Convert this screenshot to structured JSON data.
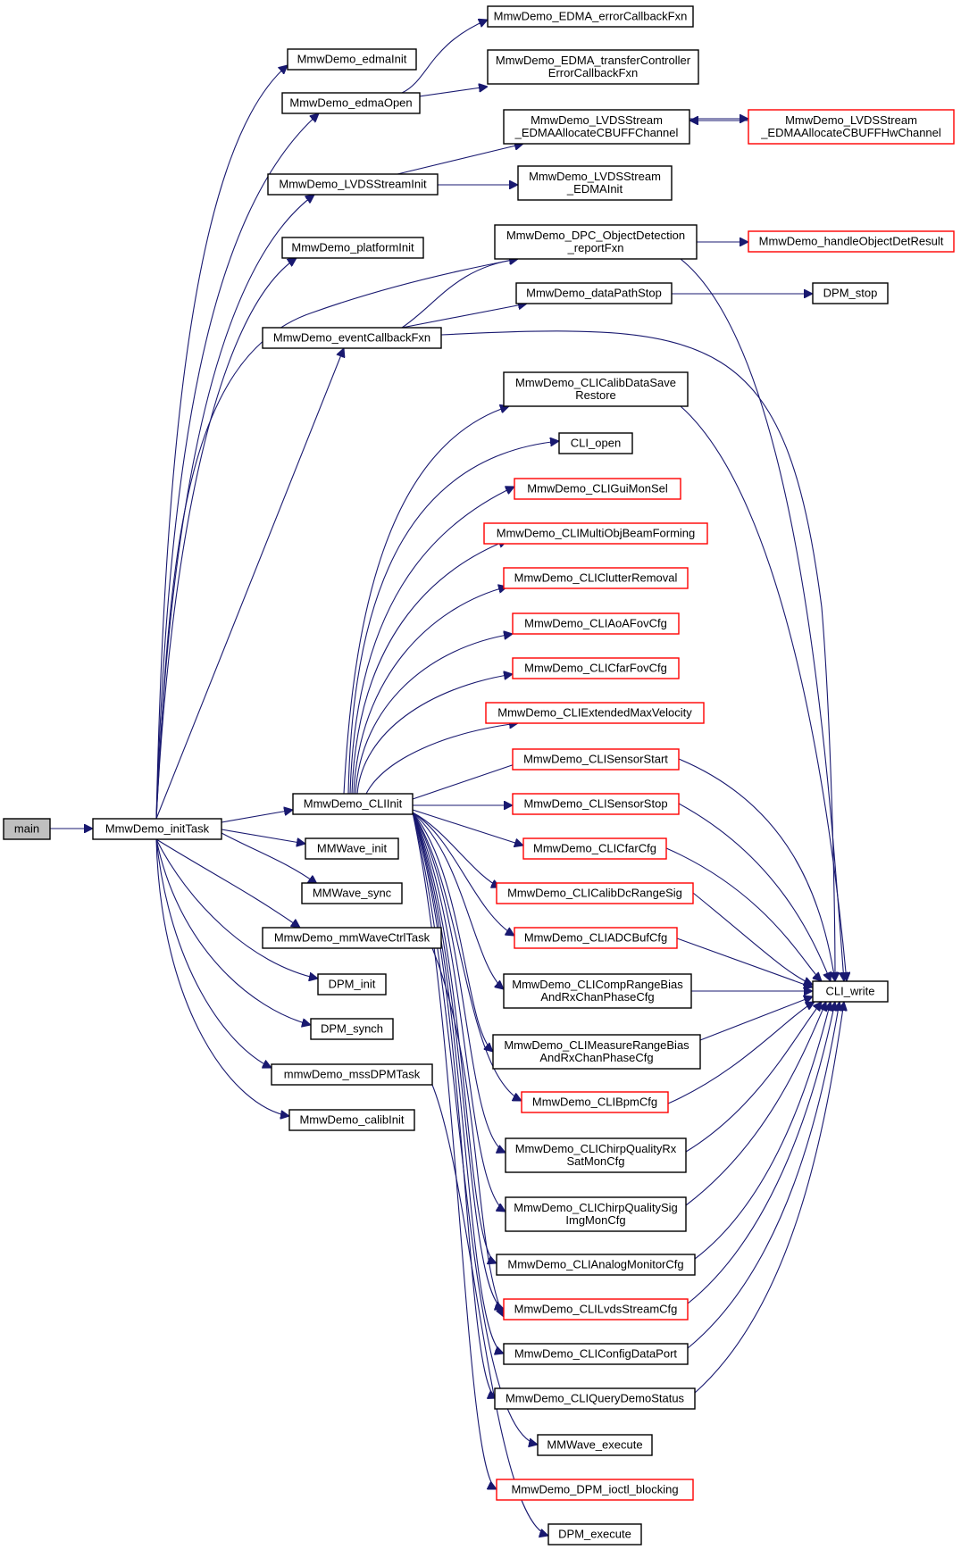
{
  "colors": {
    "edge": "#191970",
    "node_border": "#000000",
    "node_border_truncated": "#ff0000",
    "root_fill": "#bfbfbf",
    "background": "#ffffff"
  },
  "graph": {
    "nodes": [
      {
        "id": "main",
        "lines": [
          "main"
        ],
        "style": "root"
      },
      {
        "id": "initTask",
        "lines": [
          "MmwDemo_initTask"
        ]
      },
      {
        "id": "edmaInit",
        "lines": [
          "MmwDemo_edmaInit"
        ]
      },
      {
        "id": "edmaOpen",
        "lines": [
          "MmwDemo_edmaOpen"
        ]
      },
      {
        "id": "edmaErrCb",
        "lines": [
          "MmwDemo_EDMA_errorCallbackFxn"
        ]
      },
      {
        "id": "edmaTcErrCb",
        "lines": [
          "MmwDemo_EDMA_transferController",
          "ErrorCallbackFxn"
        ]
      },
      {
        "id": "lvdsInit",
        "lines": [
          "MmwDemo_LVDSStreamInit"
        ]
      },
      {
        "id": "lvdsCbuff",
        "lines": [
          "MmwDemo_LVDSStream",
          "_EDMAAllocateCBUFFChannel"
        ]
      },
      {
        "id": "lvdsCbuffHw",
        "lines": [
          "MmwDemo_LVDSStream",
          "_EDMAAllocateCBUFFHwChannel"
        ],
        "style": "red"
      },
      {
        "id": "lvdsEdmaInit",
        "lines": [
          "MmwDemo_LVDSStream",
          "_EDMAInit"
        ]
      },
      {
        "id": "platformInit",
        "lines": [
          "MmwDemo_platformInit"
        ]
      },
      {
        "id": "dpcReport",
        "lines": [
          "MmwDemo_DPC_ObjectDetection",
          "_reportFxn"
        ]
      },
      {
        "id": "handleObj",
        "lines": [
          "MmwDemo_handleObjectDetResult"
        ],
        "style": "red"
      },
      {
        "id": "dataPathStop",
        "lines": [
          "MmwDemo_dataPathStop"
        ]
      },
      {
        "id": "dpmStop",
        "lines": [
          "DPM_stop"
        ]
      },
      {
        "id": "eventCb",
        "lines": [
          "MmwDemo_eventCallbackFxn"
        ]
      },
      {
        "id": "cliCalibSave",
        "lines": [
          "MmwDemo_CLICalibDataSave",
          "Restore"
        ]
      },
      {
        "id": "cliOpen",
        "lines": [
          "CLI_open"
        ]
      },
      {
        "id": "cliGuiMon",
        "lines": [
          "MmwDemo_CLIGuiMonSel"
        ],
        "style": "red"
      },
      {
        "id": "cliMultiObj",
        "lines": [
          "MmwDemo_CLIMultiObjBeamForming"
        ],
        "style": "red"
      },
      {
        "id": "cliClutter",
        "lines": [
          "MmwDemo_CLIClutterRemoval"
        ],
        "style": "red"
      },
      {
        "id": "cliAoa",
        "lines": [
          "MmwDemo_CLIAoAFovCfg"
        ],
        "style": "red"
      },
      {
        "id": "cliCfarFov",
        "lines": [
          "MmwDemo_CLICfarFovCfg"
        ],
        "style": "red"
      },
      {
        "id": "cliExtVel",
        "lines": [
          "MmwDemo_CLIExtendedMaxVelocity"
        ],
        "style": "red"
      },
      {
        "id": "cliSensorStart",
        "lines": [
          "MmwDemo_CLISensorStart"
        ],
        "style": "red"
      },
      {
        "id": "cliSensorStop",
        "lines": [
          "MmwDemo_CLISensorStop"
        ],
        "style": "red"
      },
      {
        "id": "cliInit",
        "lines": [
          "MmwDemo_CLIInit"
        ]
      },
      {
        "id": "cliCfarCfg",
        "lines": [
          "MmwDemo_CLICfarCfg"
        ],
        "style": "red"
      },
      {
        "id": "mmwaveInit",
        "lines": [
          "MMWave_init"
        ]
      },
      {
        "id": "cliCalibDc",
        "lines": [
          "MmwDemo_CLICalibDcRangeSig"
        ],
        "style": "red"
      },
      {
        "id": "mmwaveSync",
        "lines": [
          "MMWave_sync"
        ]
      },
      {
        "id": "cliAdcBuf",
        "lines": [
          "MmwDemo_CLIADCBufCfg"
        ],
        "style": "red"
      },
      {
        "id": "mmwaveCtrl",
        "lines": [
          "MmwDemo_mmWaveCtrlTask"
        ]
      },
      {
        "id": "cliWrite",
        "lines": [
          "CLI_write"
        ]
      },
      {
        "id": "cliCompRange",
        "lines": [
          "MmwDemo_CLICompRangeBias",
          "AndRxChanPhaseCfg"
        ]
      },
      {
        "id": "dpmInit",
        "lines": [
          "DPM_init"
        ]
      },
      {
        "id": "dpmSynch",
        "lines": [
          "DPM_synch"
        ]
      },
      {
        "id": "cliMeasure",
        "lines": [
          "MmwDemo_CLIMeasureRangeBias",
          "AndRxChanPhaseCfg"
        ]
      },
      {
        "id": "mssDpm",
        "lines": [
          "mmwDemo_mssDPMTask"
        ]
      },
      {
        "id": "cliBpm",
        "lines": [
          "MmwDemo_CLIBpmCfg"
        ],
        "style": "red"
      },
      {
        "id": "calibInit",
        "lines": [
          "MmwDemo_calibInit"
        ]
      },
      {
        "id": "cliChirpRx",
        "lines": [
          "MmwDemo_CLIChirpQualityRx",
          "SatMonCfg"
        ]
      },
      {
        "id": "cliChirpSig",
        "lines": [
          "MmwDemo_CLIChirpQualitySig",
          "ImgMonCfg"
        ]
      },
      {
        "id": "cliAnalog",
        "lines": [
          "MmwDemo_CLIAnalogMonitorCfg"
        ]
      },
      {
        "id": "cliLvds",
        "lines": [
          "MmwDemo_CLILvdsStreamCfg"
        ],
        "style": "red"
      },
      {
        "id": "cliConfigPort",
        "lines": [
          "MmwDemo_CLIConfigDataPort"
        ]
      },
      {
        "id": "cliQuery",
        "lines": [
          "MmwDemo_CLIQueryDemoStatus"
        ]
      },
      {
        "id": "mmwaveExec",
        "lines": [
          "MMWave_execute"
        ]
      },
      {
        "id": "dpmIoctl",
        "lines": [
          "MmwDemo_DPM_ioctl_blocking"
        ],
        "style": "red"
      },
      {
        "id": "dpmExec",
        "lines": [
          "DPM_execute"
        ]
      }
    ]
  }
}
